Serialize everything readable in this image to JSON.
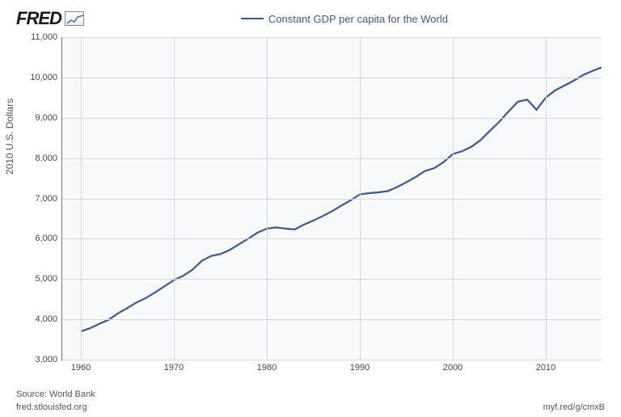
{
  "logo_text": "FRED",
  "legend_label": "Constant GDP per capita for the World",
  "ylabel": "2010 U.S. Dollars",
  "source_label": "Source: World Bank",
  "site_label": "fred.stlouisfed.org",
  "shortlink": "myf.red/g/cmxB",
  "chart": {
    "type": "line",
    "line_color": "#3b5998",
    "line_width": 2.2,
    "background_color": "#f8f9fb",
    "grid_color": "#d6d8dc",
    "axis_color": "#777777",
    "tick_fontsize": 11,
    "label_fontsize": 12,
    "legend_fontsize": 13,
    "xlim": [
      1958,
      2016
    ],
    "ylim": [
      3000,
      11000
    ],
    "yticks": [
      3000,
      4000,
      5000,
      6000,
      7000,
      8000,
      9000,
      10000,
      11000
    ],
    "ytick_labels": [
      "3,000",
      "4,000",
      "5,000",
      "6,000",
      "7,000",
      "8,000",
      "9,000",
      "10,000",
      "11,000"
    ],
    "xticks": [
      1960,
      1970,
      1980,
      1990,
      2000,
      2010
    ],
    "xtick_labels": [
      "1960",
      "1970",
      "1980",
      "1990",
      "2000",
      "2010"
    ],
    "series": {
      "x": [
        1960,
        1961,
        1962,
        1963,
        1964,
        1965,
        1966,
        1967,
        1968,
        1969,
        1970,
        1971,
        1972,
        1973,
        1974,
        1975,
        1976,
        1977,
        1978,
        1979,
        1980,
        1981,
        1982,
        1983,
        1984,
        1985,
        1986,
        1987,
        1988,
        1989,
        1990,
        1991,
        1992,
        1993,
        1994,
        1995,
        1996,
        1997,
        1998,
        1999,
        2000,
        2001,
        2002,
        2003,
        2004,
        2005,
        2006,
        2007,
        2008,
        2009,
        2010,
        2011,
        2012,
        2013,
        2014,
        2015,
        2016
      ],
      "y": [
        3700,
        3780,
        3890,
        3990,
        4150,
        4280,
        4420,
        4530,
        4670,
        4820,
        4970,
        5080,
        5230,
        5450,
        5570,
        5620,
        5720,
        5860,
        6000,
        6150,
        6250,
        6280,
        6250,
        6230,
        6350,
        6450,
        6560,
        6680,
        6820,
        6950,
        7100,
        7130,
        7150,
        7180,
        7280,
        7400,
        7530,
        7680,
        7750,
        7900,
        8100,
        8170,
        8280,
        8450,
        8680,
        8900,
        9160,
        9400,
        9450,
        9200,
        9500,
        9680,
        9800,
        9920,
        10060,
        10160,
        10250
      ]
    }
  }
}
